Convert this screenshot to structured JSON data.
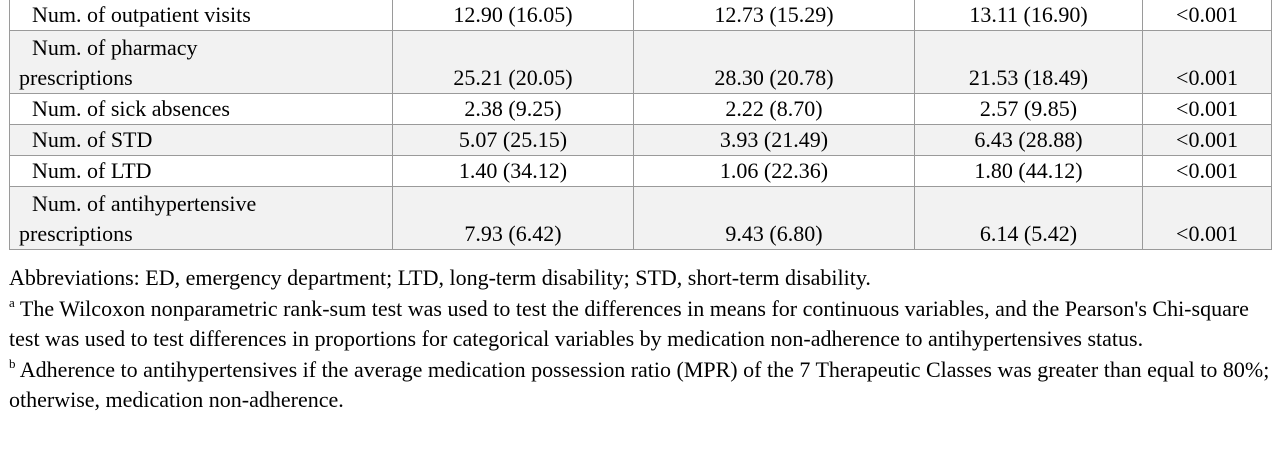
{
  "table": {
    "rows": [
      {
        "label": "Num. of outpatient visits",
        "label_cont": "",
        "total": "12.90 (16.05)",
        "adherent": "12.73 (15.29)",
        "nonadherent": "13.11 (16.90)",
        "p": "<0.001"
      },
      {
        "label": "Num. of pharmacy",
        "label_cont": "prescriptions",
        "total": "25.21 (20.05)",
        "adherent": "28.30 (20.78)",
        "nonadherent": "21.53 (18.49)",
        "p": "<0.001"
      },
      {
        "label": "Num. of sick absences",
        "label_cont": "",
        "total": "2.38 (9.25)",
        "adherent": "2.22 (8.70)",
        "nonadherent": "2.57 (9.85)",
        "p": "<0.001"
      },
      {
        "label": "Num. of STD",
        "label_cont": "",
        "total": "5.07 (25.15)",
        "adherent": "3.93 (21.49)",
        "nonadherent": "6.43 (28.88)",
        "p": "<0.001"
      },
      {
        "label": "Num. of LTD",
        "label_cont": "",
        "total": "1.40 (34.12)",
        "adherent": "1.06 (22.36)",
        "nonadherent": "1.80 (44.12)",
        "p": "<0.001"
      },
      {
        "label": "Num. of antihypertensive",
        "label_cont": "prescriptions",
        "total": "7.93 (6.42)",
        "adherent": "9.43 (6.80)",
        "nonadherent": "6.14 (5.42)",
        "p": "<0.001"
      }
    ]
  },
  "notes": {
    "abbreviations": "Abbreviations: ED, emergency department; LTD, long-term disability; STD, short-term disability.",
    "note_a_marker": "a",
    "note_a": " The Wilcoxon nonparametric rank-sum test was used to test the differences in means for continuous variables, and the Pearson's Chi-square test was used to test differences in proportions for categorical variables by medication non-adherence to antihypertensives status.",
    "note_b_marker": "b",
    "note_b": " Adherence to antihypertensives if the average medication possession ratio (MPR) of the 7 Therapeutic Classes was greater than equal to 80%; otherwise, medication non-adherence."
  }
}
